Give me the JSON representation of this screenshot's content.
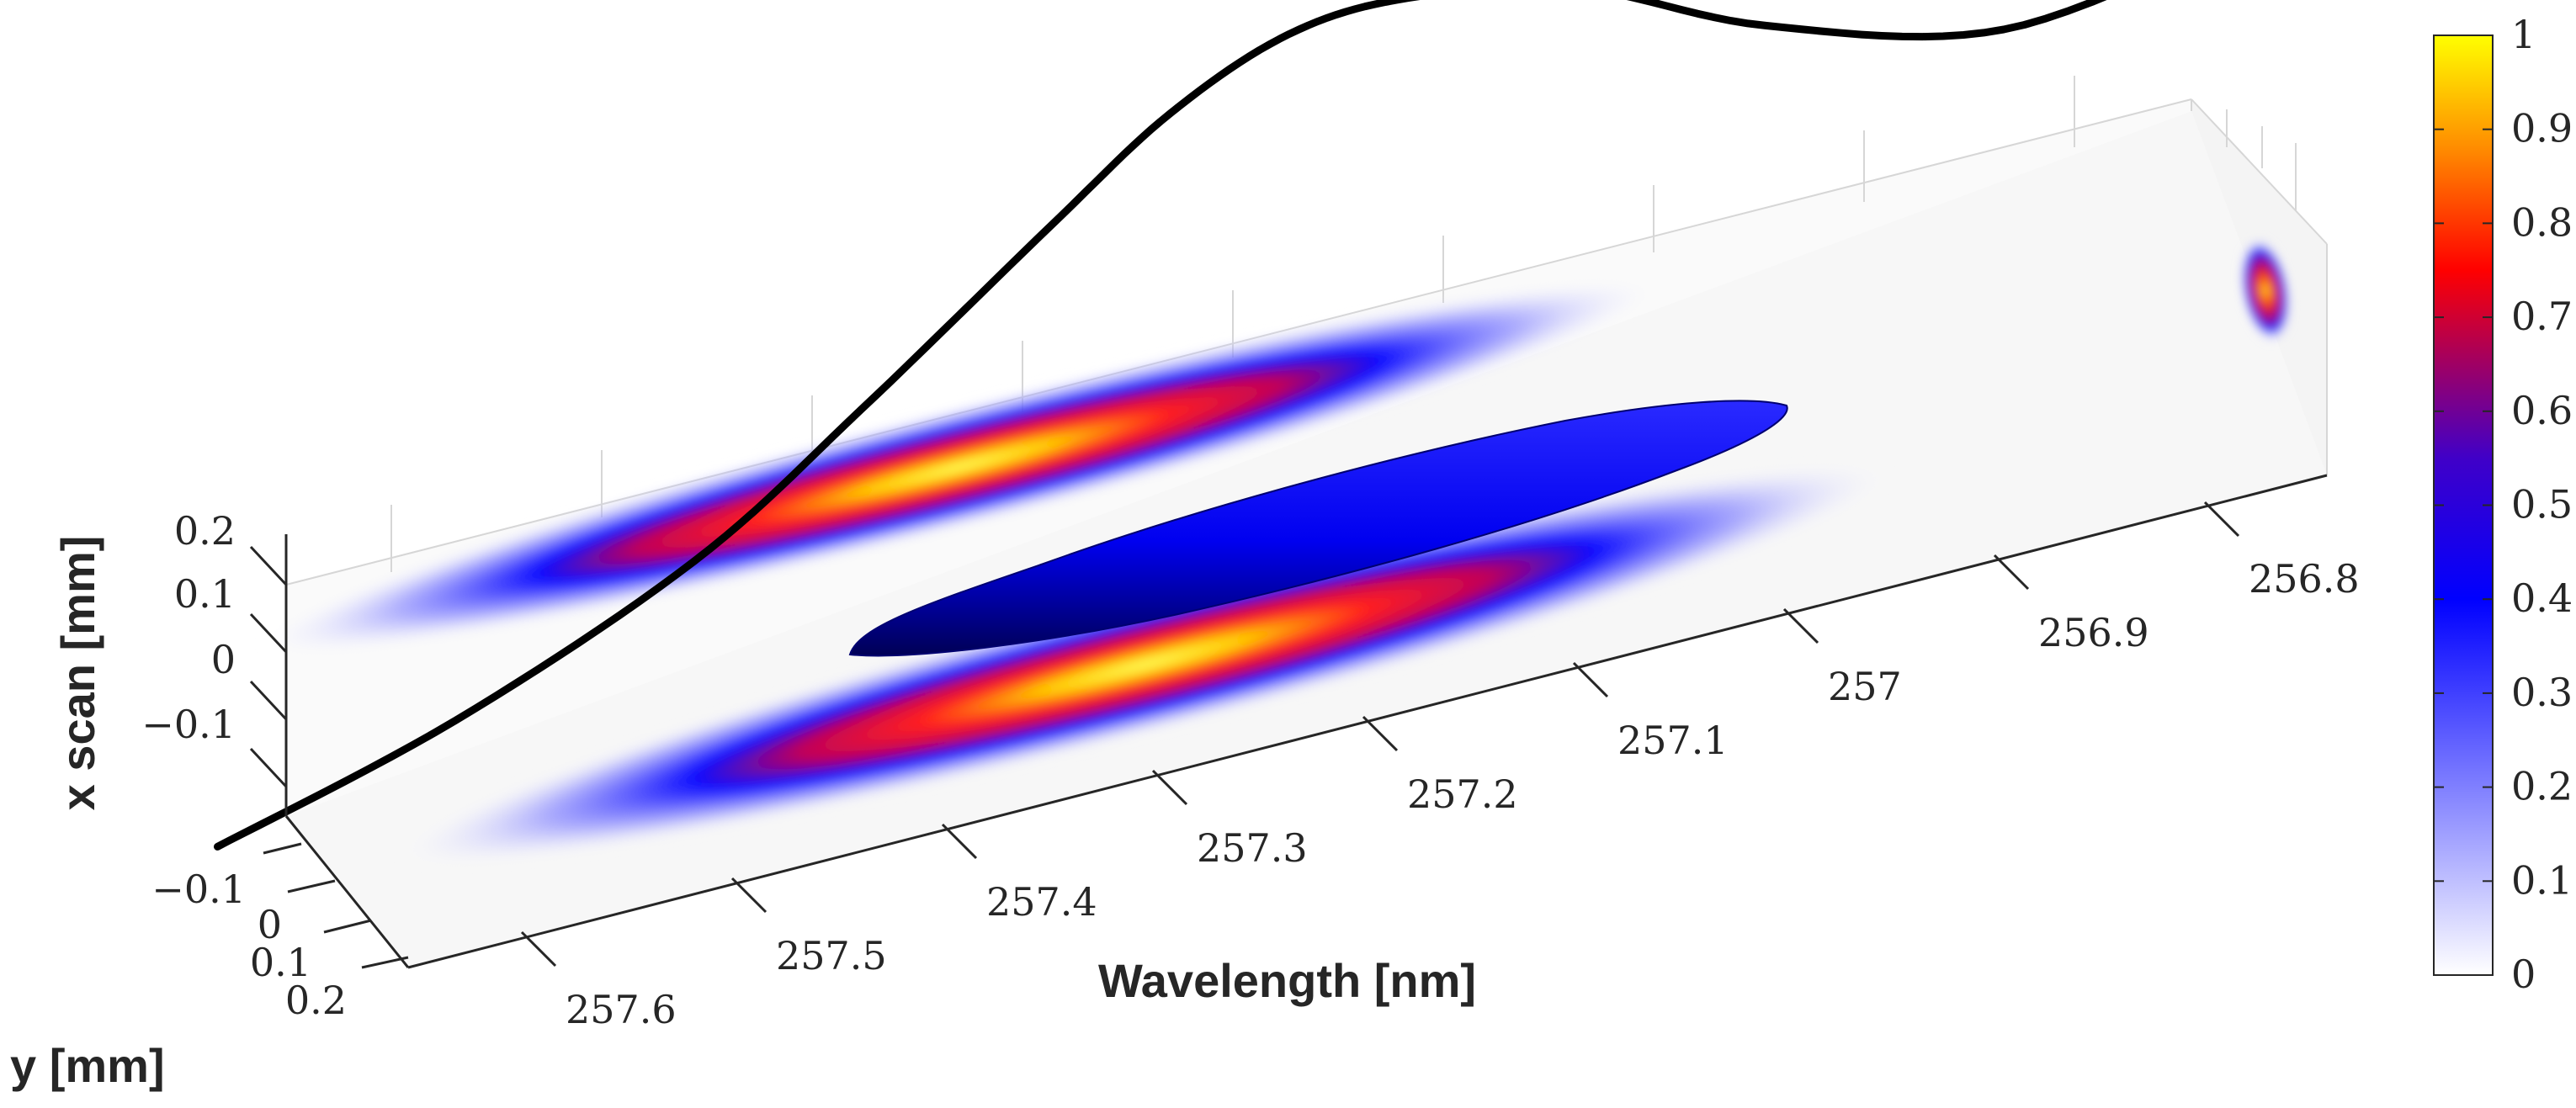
{
  "chart_data": {
    "type": "heatmap",
    "title": "",
    "xlabel": "Wavelength [nm]",
    "ylabel": "y [mm]",
    "zlabel": "x scan [mm]",
    "wavelength_ticks": [
      "257.6",
      "257.5",
      "257.4",
      "257.3",
      "257.2",
      "257.1",
      "257",
      "256.9",
      "256.8"
    ],
    "wavelength_range": [
      256.75,
      257.68
    ],
    "y_ticks": [
      "−0.1",
      "0",
      "0.1",
      "0.2"
    ],
    "y_range": [
      -0.2,
      0.2
    ],
    "x_scan_ticks": [
      "0.2",
      "0.1",
      "0",
      "−0.1"
    ],
    "x_scan_range": [
      -0.2,
      0.2
    ],
    "colorbar": {
      "ticks": [
        "0",
        "0.1",
        "0.2",
        "0.3",
        "0.4",
        "0.5",
        "0.6",
        "0.7",
        "0.8",
        "0.9",
        "1"
      ],
      "range": [
        0,
        1
      ],
      "colormap": [
        "#ffffff",
        "#0000ff",
        "#ff0000",
        "#ffff00"
      ]
    },
    "projections": [
      {
        "plane": "back wall (wavelength vs x scan)",
        "center_wavelength": 257.23,
        "peak": 1.0
      },
      {
        "plane": "floor (wavelength vs y)",
        "center_wavelength": 257.2,
        "peak": 1.0
      },
      {
        "plane": "side wall (y vs x scan)",
        "peak": 1.0
      }
    ],
    "isosurface": {
      "level": 0.4,
      "color": "#0000ff",
      "wavelength_span": [
        257.45,
        256.98
      ]
    },
    "spectrum_curve": {
      "color": "#000000",
      "wavelength": [
        257.65,
        257.55,
        257.45,
        257.38,
        257.3,
        257.25,
        257.2,
        257.15,
        257.08,
        257.0,
        256.9,
        256.8
      ],
      "relative_height": [
        0.0,
        0.12,
        0.3,
        0.5,
        0.75,
        0.9,
        0.99,
        1.0,
        0.94,
        0.78,
        0.66,
        0.72
      ]
    }
  }
}
